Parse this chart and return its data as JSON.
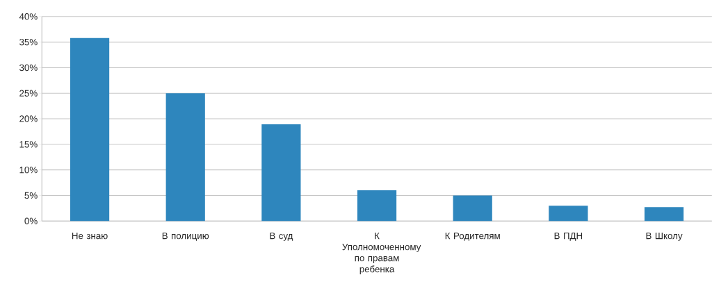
{
  "chart_data": {
    "type": "bar",
    "categories": [
      "Не знаю",
      "В полицию",
      "В суд",
      "К Уполномоченному по правам ребенка",
      "К Родителям",
      "В ПДН",
      "В Школу"
    ],
    "values": [
      35.8,
      25,
      18.9,
      6,
      5,
      3,
      2.7
    ],
    "color": "#2e86bd",
    "ylim": [
      0,
      40
    ],
    "yticks": [
      {
        "value": 0,
        "label": "0%"
      },
      {
        "value": 5,
        "label": "5%"
      },
      {
        "value": 10,
        "label": "10%"
      },
      {
        "value": 15,
        "label": "15%"
      },
      {
        "value": 20,
        "label": "20%"
      },
      {
        "value": 25,
        "label": "25%"
      },
      {
        "value": 30,
        "label": "30%"
      },
      {
        "value": 35,
        "label": "35%"
      },
      {
        "value": 40,
        "label": "40%"
      }
    ],
    "grid": "y"
  }
}
